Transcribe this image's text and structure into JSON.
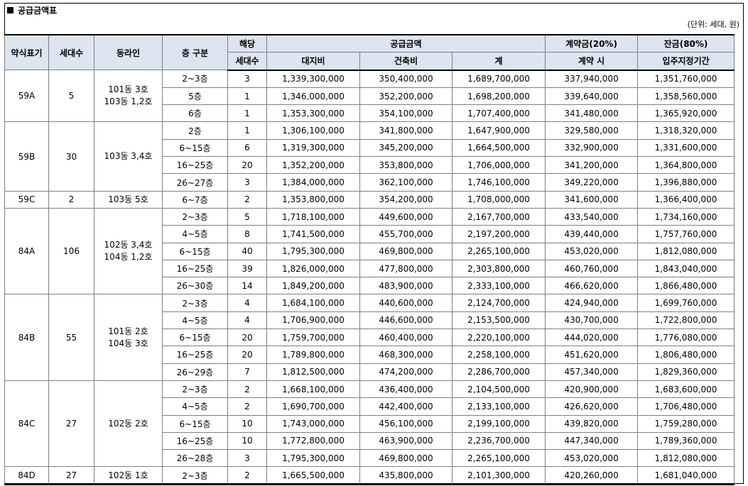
{
  "title": "공급금액표",
  "unit_note": "(단위: 세대, 원)",
  "headers": {
    "type": "약식표기",
    "households": "세대수",
    "dong_line": "동라인",
    "floor": "층 구분",
    "applicable_top": "해당",
    "applicable_bottom": "세대수",
    "supply": "공급금액",
    "land": "대지비",
    "building": "건축비",
    "total": "계",
    "deposit_top": "계약금(20%)",
    "deposit_bottom": "계약 시",
    "balance_top": "잔금(80%)",
    "balance_bottom": "입주지정기간"
  },
  "groups": [
    {
      "type": "59A",
      "households": "5",
      "dong_lines": [
        "101동 3호",
        "103동 1,2호"
      ],
      "rows": [
        {
          "floor": "2~3층",
          "count": "3",
          "land": "1,339,300,000",
          "building": "350,400,000",
          "total": "1,689,700,000",
          "deposit": "337,940,000",
          "balance": "1,351,760,000"
        },
        {
          "floor": "5층",
          "count": "1",
          "land": "1,346,000,000",
          "building": "352,200,000",
          "total": "1,698,200,000",
          "deposit": "339,640,000",
          "balance": "1,358,560,000"
        },
        {
          "floor": "6층",
          "count": "1",
          "land": "1,353,300,000",
          "building": "354,100,000",
          "total": "1,707,400,000",
          "deposit": "341,480,000",
          "balance": "1,365,920,000"
        }
      ]
    },
    {
      "type": "59B",
      "households": "30",
      "dong_lines": [
        "103동 3,4호"
      ],
      "rows": [
        {
          "floor": "2층",
          "count": "1",
          "land": "1,306,100,000",
          "building": "341,800,000",
          "total": "1,647,900,000",
          "deposit": "329,580,000",
          "balance": "1,318,320,000"
        },
        {
          "floor": "6~15층",
          "count": "6",
          "land": "1,319,300,000",
          "building": "345,200,000",
          "total": "1,664,500,000",
          "deposit": "332,900,000",
          "balance": "1,331,600,000"
        },
        {
          "floor": "16~25층",
          "count": "20",
          "land": "1,352,200,000",
          "building": "353,800,000",
          "total": "1,706,000,000",
          "deposit": "341,200,000",
          "balance": "1,364,800,000"
        },
        {
          "floor": "26~27층",
          "count": "3",
          "land": "1,384,000,000",
          "building": "362,100,000",
          "total": "1,746,100,000",
          "deposit": "349,220,000",
          "balance": "1,396,880,000"
        }
      ]
    },
    {
      "type": "59C",
      "households": "2",
      "dong_lines": [
        "103동 5호"
      ],
      "rows": [
        {
          "floor": "6~7층",
          "count": "2",
          "land": "1,353,800,000",
          "building": "354,200,000",
          "total": "1,708,000,000",
          "deposit": "341,600,000",
          "balance": "1,366,400,000"
        }
      ]
    },
    {
      "type": "84A",
      "households": "106",
      "dong_lines": [
        "102동 3,4호",
        "104동 1,2호"
      ],
      "rows": [
        {
          "floor": "2~3층",
          "count": "5",
          "land": "1,718,100,000",
          "building": "449,600,000",
          "total": "2,167,700,000",
          "deposit": "433,540,000",
          "balance": "1,734,160,000"
        },
        {
          "floor": "4~5층",
          "count": "8",
          "land": "1,741,500,000",
          "building": "455,700,000",
          "total": "2,197,200,000",
          "deposit": "439,440,000",
          "balance": "1,757,760,000"
        },
        {
          "floor": "6~15층",
          "count": "40",
          "land": "1,795,300,000",
          "building": "469,800,000",
          "total": "2,265,100,000",
          "deposit": "453,020,000",
          "balance": "1,812,080,000"
        },
        {
          "floor": "16~25층",
          "count": "39",
          "land": "1,826,000,000",
          "building": "477,800,000",
          "total": "2,303,800,000",
          "deposit": "460,760,000",
          "balance": "1,843,040,000"
        },
        {
          "floor": "26~30층",
          "count": "14",
          "land": "1,849,200,000",
          "building": "483,900,000",
          "total": "2,333,100,000",
          "deposit": "466,620,000",
          "balance": "1,866,480,000"
        }
      ]
    },
    {
      "type": "84B",
      "households": "55",
      "dong_lines": [
        "101동 2호",
        "104동 3호"
      ],
      "rows": [
        {
          "floor": "2~3층",
          "count": "4",
          "land": "1,684,100,000",
          "building": "440,600,000",
          "total": "2,124,700,000",
          "deposit": "424,940,000",
          "balance": "1,699,760,000"
        },
        {
          "floor": "4~5층",
          "count": "4",
          "land": "1,706,900,000",
          "building": "446,600,000",
          "total": "2,153,500,000",
          "deposit": "430,700,000",
          "balance": "1,722,800,000"
        },
        {
          "floor": "6~15층",
          "count": "20",
          "land": "1,759,700,000",
          "building": "460,400,000",
          "total": "2,220,100,000",
          "deposit": "444,020,000",
          "balance": "1,776,080,000"
        },
        {
          "floor": "16~25층",
          "count": "20",
          "land": "1,789,800,000",
          "building": "468,300,000",
          "total": "2,258,100,000",
          "deposit": "451,620,000",
          "balance": "1,806,480,000"
        },
        {
          "floor": "26~29층",
          "count": "7",
          "land": "1,812,500,000",
          "building": "474,200,000",
          "total": "2,286,700,000",
          "deposit": "457,340,000",
          "balance": "1,829,360,000"
        }
      ]
    },
    {
      "type": "84C",
      "households": "27",
      "dong_lines": [
        "102동 2호"
      ],
      "rows": [
        {
          "floor": "2~3층",
          "count": "2",
          "land": "1,668,100,000",
          "building": "436,400,000",
          "total": "2,104,500,000",
          "deposit": "420,900,000",
          "balance": "1,683,600,000"
        },
        {
          "floor": "4~5층",
          "count": "2",
          "land": "1,690,700,000",
          "building": "442,400,000",
          "total": "2,133,100,000",
          "deposit": "426,620,000",
          "balance": "1,706,480,000"
        },
        {
          "floor": "6~15층",
          "count": "10",
          "land": "1,743,000,000",
          "building": "456,100,000",
          "total": "2,199,100,000",
          "deposit": "439,820,000",
          "balance": "1,759,280,000"
        },
        {
          "floor": "16~25층",
          "count": "10",
          "land": "1,772,800,000",
          "building": "463,900,000",
          "total": "2,236,700,000",
          "deposit": "447,340,000",
          "balance": "1,789,360,000"
        },
        {
          "floor": "26~28층",
          "count": "3",
          "land": "1,795,300,000",
          "building": "469,800,000",
          "total": "2,265,100,000",
          "deposit": "453,020,000",
          "balance": "1,812,080,000"
        }
      ]
    },
    {
      "type": "84D",
      "households": "27",
      "dong_lines": [
        "102동 1호"
      ],
      "rows": [
        {
          "floor": "2~3층",
          "count": "2",
          "land": "1,665,500,000",
          "building": "435,800,000",
          "total": "2,101,300,000",
          "deposit": "420,260,000",
          "balance": "1,681,040,000"
        }
      ]
    }
  ]
}
